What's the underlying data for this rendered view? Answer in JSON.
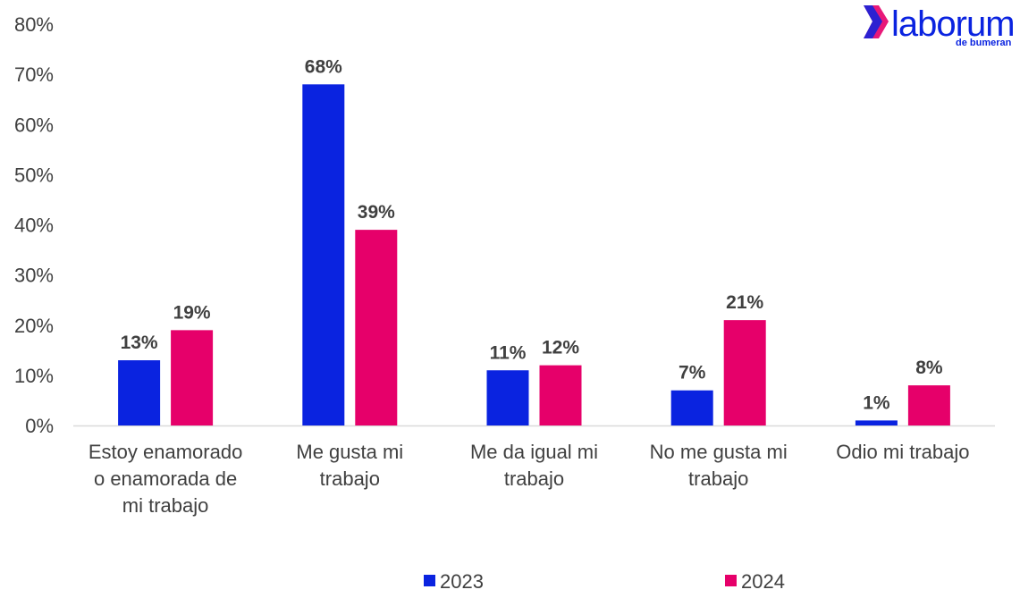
{
  "brand": {
    "name": "laborum",
    "sub": "de bumeran"
  },
  "colors": {
    "2023": "#0a23e0",
    "2024": "#e6006a",
    "axis": "#d9d9d9",
    "text": "#404040"
  },
  "chart_data": {
    "type": "bar",
    "categories": [
      [
        "Estoy enamorado",
        "o enamorada de",
        "mi trabajo"
      ],
      [
        "Me gusta mi",
        "trabajo"
      ],
      [
        "Me da igual mi",
        "trabajo"
      ],
      [
        "No me gusta mi",
        "trabajo"
      ],
      [
        "Odio mi trabajo"
      ]
    ],
    "series": [
      {
        "name": "2023",
        "values": [
          13,
          68,
          11,
          7,
          1
        ],
        "labels": [
          "13%",
          "68%",
          "11%",
          "7%",
          "1%"
        ]
      },
      {
        "name": "2024",
        "values": [
          19,
          39,
          12,
          21,
          8
        ],
        "labels": [
          "19%",
          "39%",
          "12%",
          "21%",
          "8%"
        ]
      }
    ],
    "ylim": [
      0,
      80
    ],
    "yticks": [
      "0%",
      "10%",
      "20%",
      "30%",
      "40%",
      "50%",
      "60%",
      "70%",
      "80%"
    ],
    "legend_position": "bottom"
  }
}
